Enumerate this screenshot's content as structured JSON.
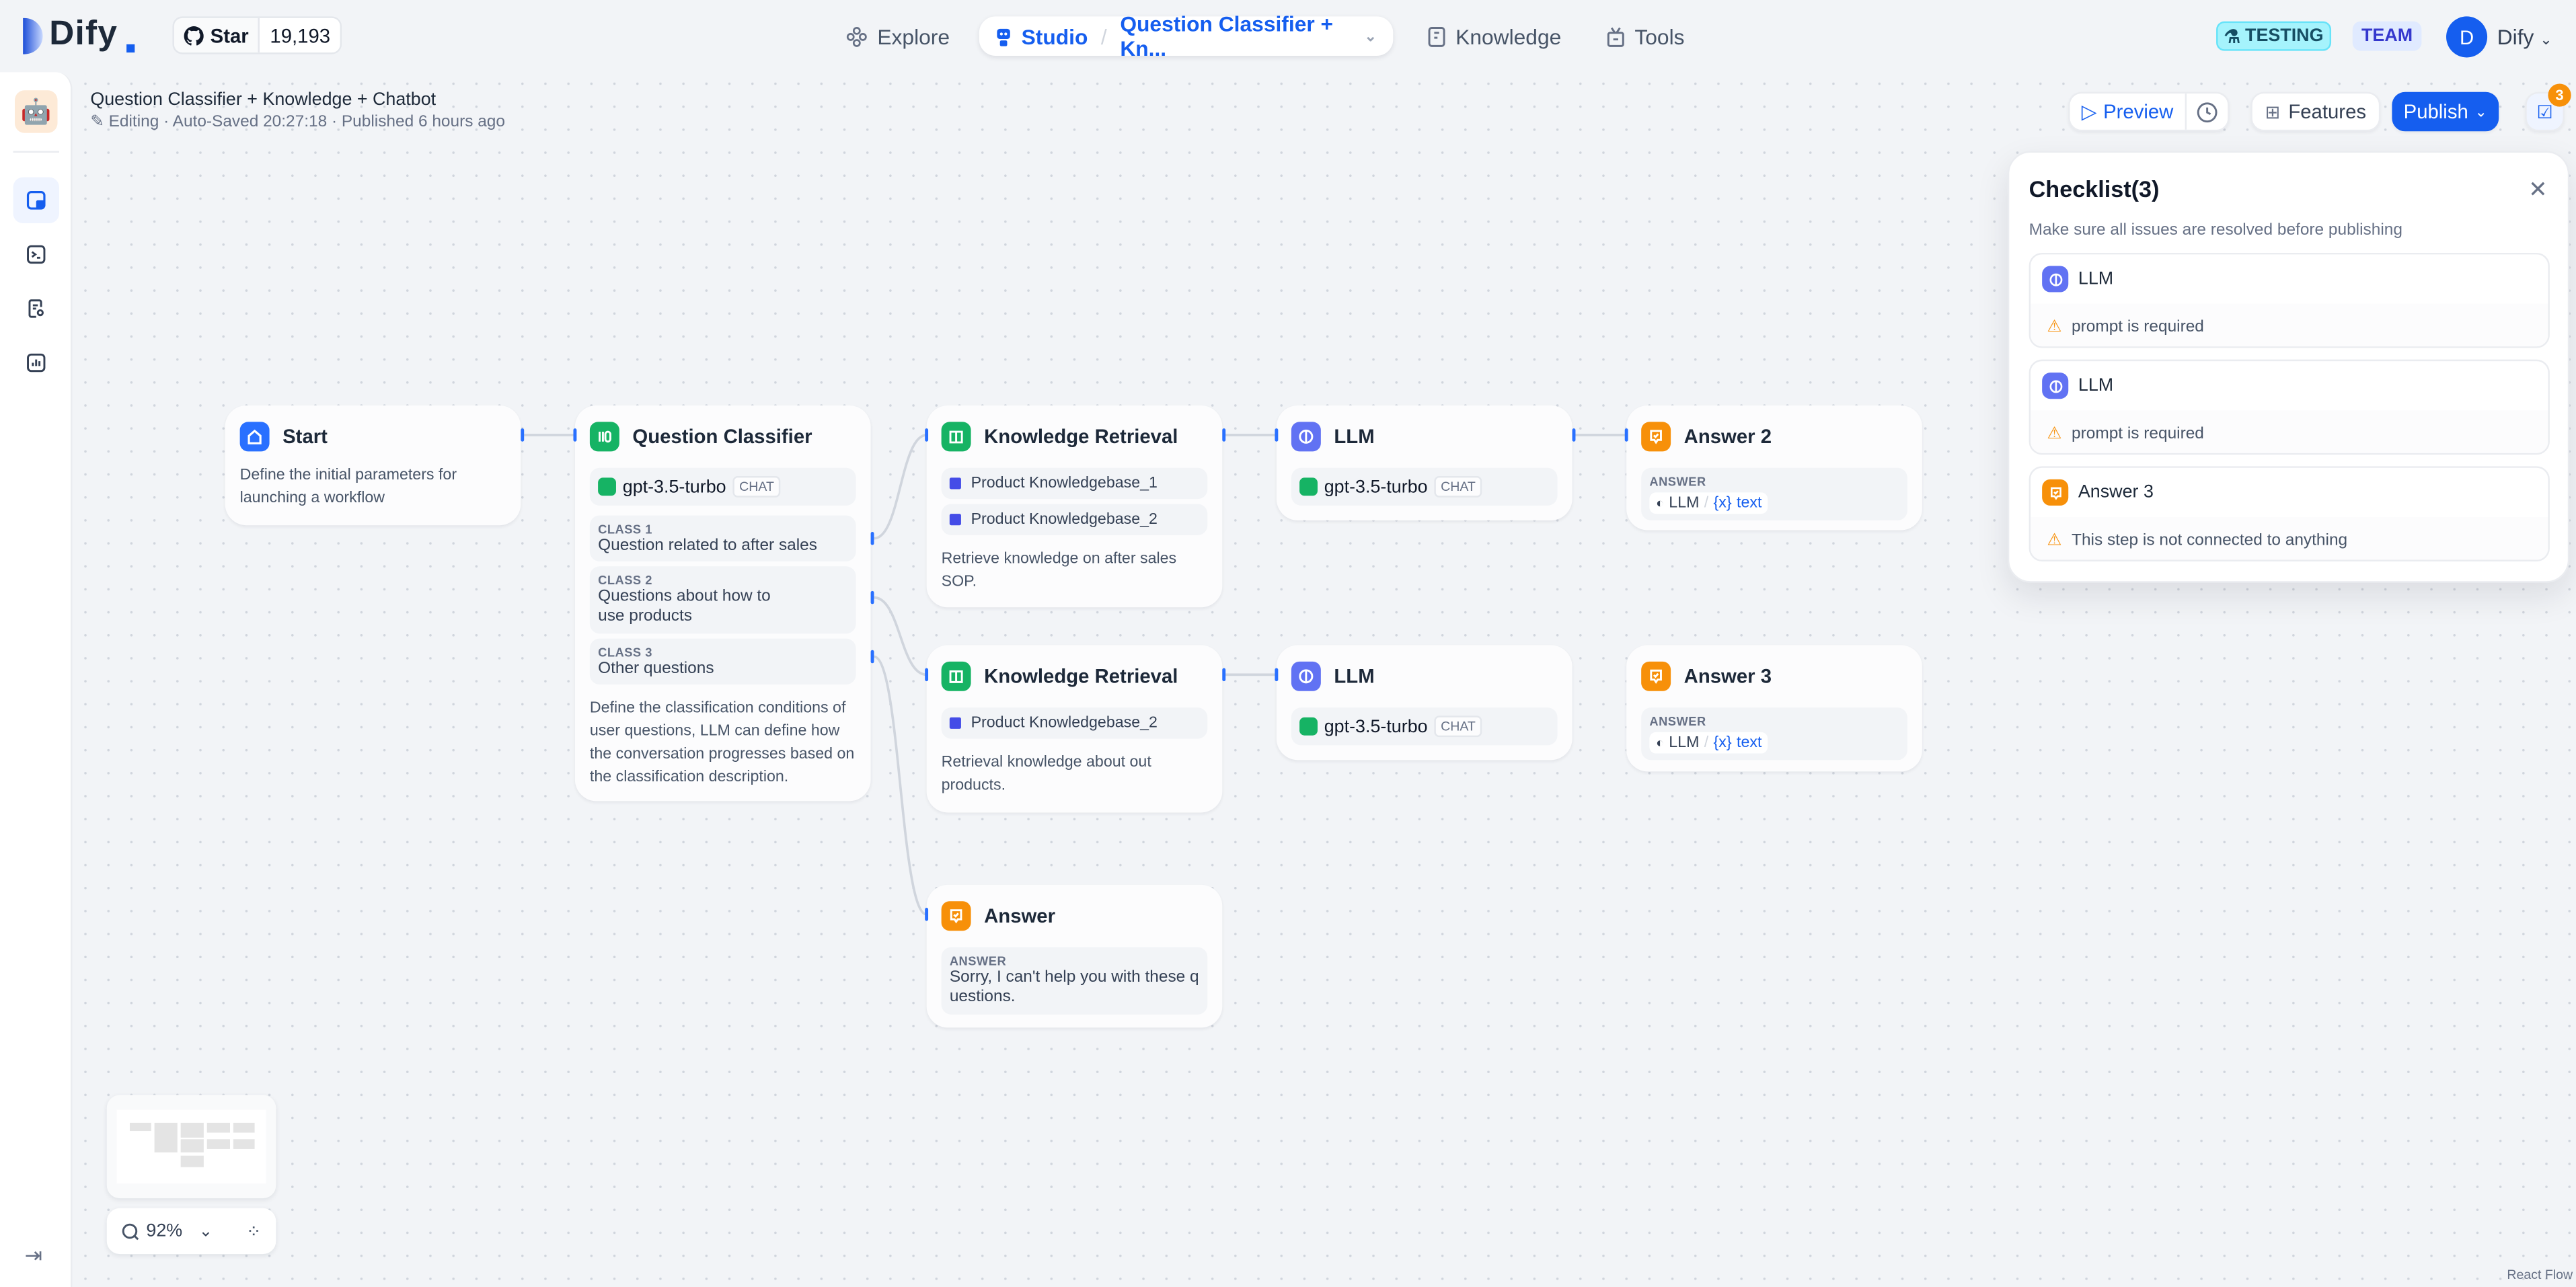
{
  "brand": {
    "name": "Dify",
    "github_star_label": "Star",
    "github_stars": "19,193"
  },
  "nav": {
    "explore": "Explore",
    "studio": "Studio",
    "current_app": "Question Classifier + Kn...",
    "knowledge": "Knowledge",
    "tools": "Tools"
  },
  "account": {
    "env_badge": "TESTING",
    "plan_badge": "TEAM",
    "avatar_initial": "D",
    "workspace": "Dify"
  },
  "app": {
    "title": "Question Classifier + Knowledge + Chatbot",
    "status": "Editing · Auto-Saved 20:27:18 · Published 6 hours ago"
  },
  "toolbar": {
    "preview": "Preview",
    "features": "Features",
    "publish": "Publish",
    "checklist_count": "3"
  },
  "checklist": {
    "title": "Checklist(3)",
    "subtitle": "Make sure all issues are resolved before publishing",
    "items": [
      {
        "node": "LLM",
        "issue": "prompt is required",
        "type": "llm"
      },
      {
        "node": "LLM",
        "issue": "prompt is required",
        "type": "llm"
      },
      {
        "node": "Answer 3",
        "issue": "This step is not connected to anything",
        "type": "answer"
      }
    ]
  },
  "nodes": {
    "start": {
      "title": "Start",
      "desc": "Define the initial parameters for launching a workflow"
    },
    "classifier": {
      "title": "Question Classifier",
      "model": "gpt-3.5-turbo",
      "mode": "CHAT",
      "classes": [
        {
          "label": "CLASS 1",
          "text": "Question related to after sales"
        },
        {
          "label": "CLASS 2",
          "text": "Questions about how to use products"
        },
        {
          "label": "CLASS 3",
          "text": "Other questions"
        }
      ],
      "desc": "Define the classification conditions of user questions, LLM can define how the conversation progresses based on the classification description."
    },
    "kr1": {
      "title": "Knowledge Retrieval",
      "datasets": [
        "Product Knowledgebase_1",
        "Product Knowledgebase_2"
      ],
      "desc": "Retrieve knowledge on after sales SOP."
    },
    "kr2": {
      "title": "Knowledge Retrieval",
      "datasets": [
        "Product Knowledgebase_2"
      ],
      "desc": "Retrieval knowledge about out products."
    },
    "answer": {
      "title": "Answer",
      "label": "ANSWER",
      "text": "Sorry, I can't help you with these questions."
    },
    "llm1": {
      "title": "LLM",
      "model": "gpt-3.5-turbo",
      "mode": "CHAT"
    },
    "llm2": {
      "title": "LLM",
      "model": "gpt-3.5-turbo",
      "mode": "CHAT"
    },
    "answer2": {
      "title": "Answer 2",
      "label": "ANSWER",
      "var_node": "LLM",
      "var_name": "text"
    },
    "answer3": {
      "title": "Answer 3",
      "label": "ANSWER",
      "var_node": "LLM",
      "var_name": "text"
    }
  },
  "zoom": {
    "level": "92%"
  },
  "attribution": "React Flow",
  "colors": {
    "accent": "#155eef",
    "start": "#2970ff",
    "knowledge": "#16b364",
    "llm": "#6172f3",
    "answer": "#f79009",
    "warning": "#f79009"
  }
}
